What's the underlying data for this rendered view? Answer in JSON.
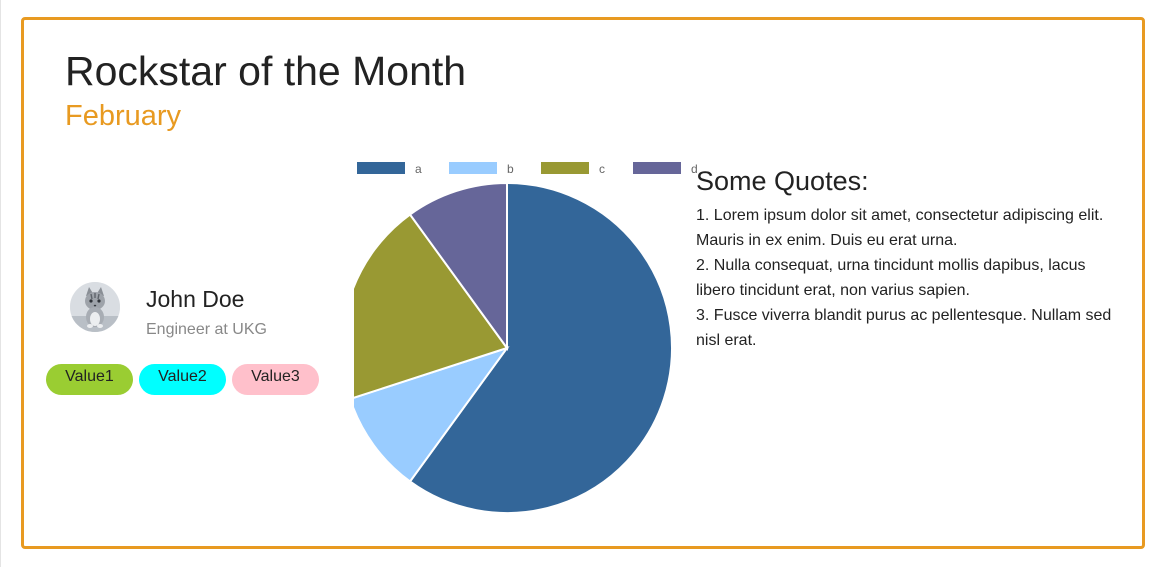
{
  "card": {
    "title": "Rockstar of the Month",
    "subtitle": "February"
  },
  "profile": {
    "name": "John Doe",
    "role": "Engineer at UKG",
    "avatar_icon": "cat-photo-avatar"
  },
  "values": [
    {
      "label": "Value1",
      "color": "#9ACD32"
    },
    {
      "label": "Value2",
      "color": "#00FFFF"
    },
    {
      "label": "Value3",
      "color": "#FFC0CB"
    }
  ],
  "quotes": {
    "title": "Some Quotes:",
    "items": [
      "1. Lorem ipsum dolor sit amet, consectetur adipiscing elit. Mauris in ex enim. Duis eu erat urna.",
      "2. Nulla consequat, urna tincidunt mollis dapibus, lacus libero tincidunt erat, non varius sapien.",
      "3. Fusce viverra blandit purus ac pellentesque. Nullam sed nisl erat."
    ]
  },
  "colors": {
    "accent": "#E89A21"
  },
  "chart_data": {
    "type": "pie",
    "categories": [
      "a",
      "b",
      "c",
      "d"
    ],
    "values": [
      60,
      10,
      20,
      10
    ],
    "colors": [
      "#336699",
      "#99CCFF",
      "#999933",
      "#666699"
    ],
    "legend": "top"
  }
}
